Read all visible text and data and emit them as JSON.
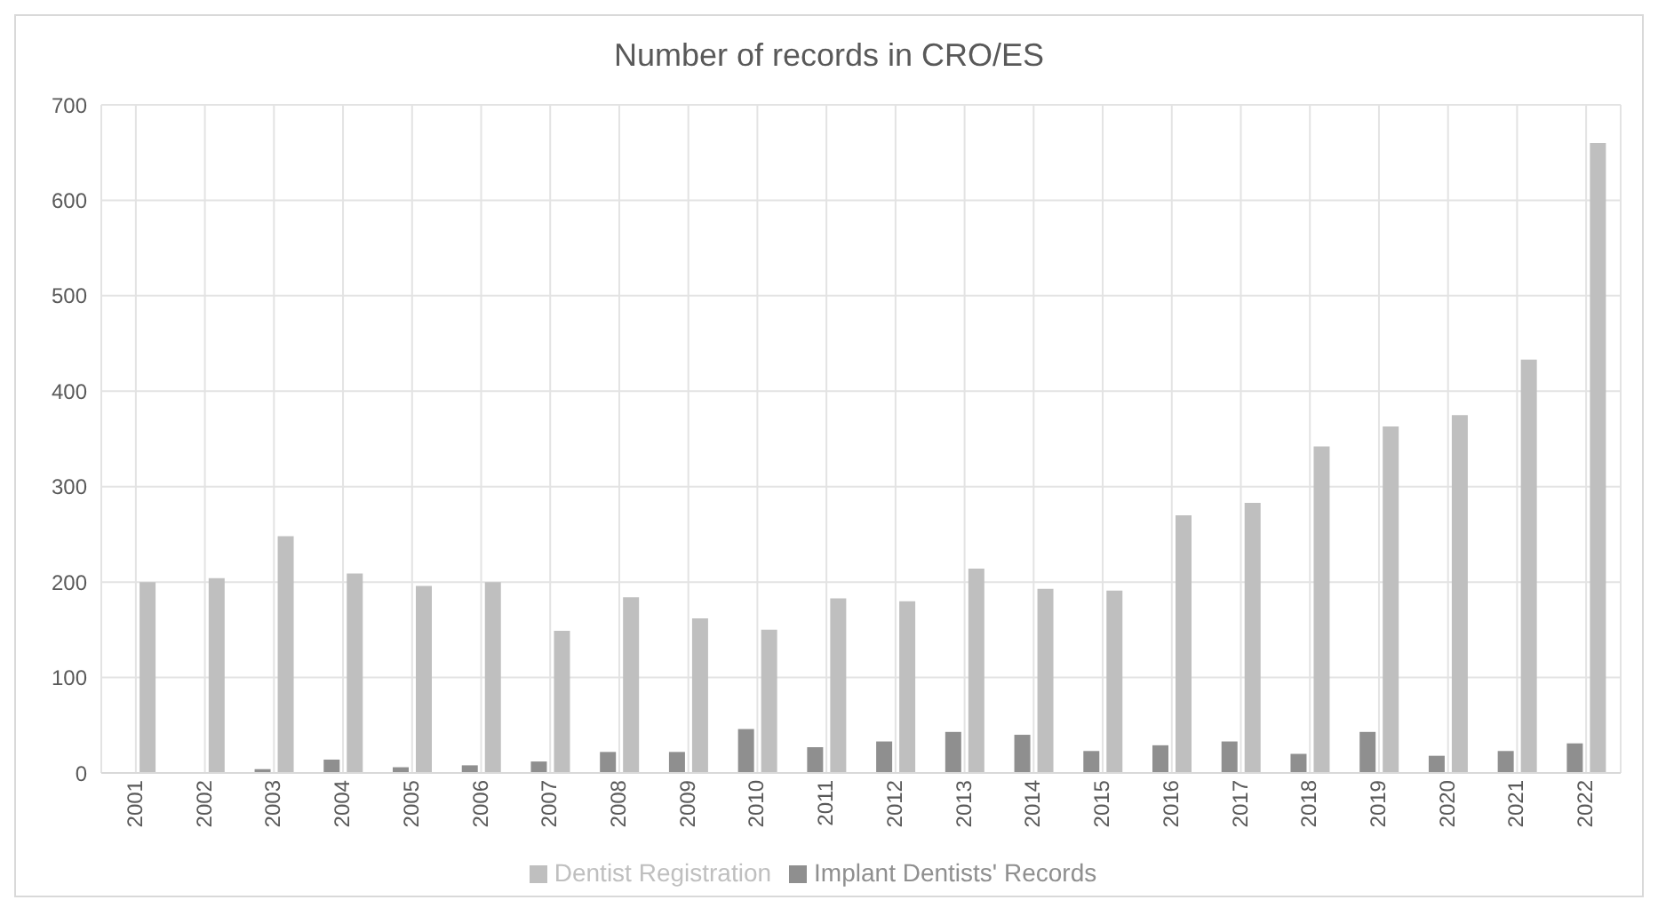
{
  "chart_data": {
    "type": "bar",
    "title": "Number of records in CRO/ES",
    "categories": [
      "2001",
      "2002",
      "2003",
      "2004",
      "2005",
      "2006",
      "2007",
      "2008",
      "2009",
      "2010",
      "2011",
      "2012",
      "2013",
      "2014",
      "2015",
      "2016",
      "2017",
      "2018",
      "2019",
      "2020",
      "2021",
      "2022"
    ],
    "series": [
      {
        "name": "Implant Dentists' Records",
        "color": "#8f8f8f",
        "values": [
          0,
          0,
          4,
          14,
          6,
          8,
          12,
          22,
          22,
          46,
          27,
          33,
          43,
          40,
          23,
          29,
          33,
          20,
          43,
          18,
          23,
          31
        ]
      },
      {
        "name": "Dentist Registration",
        "color": "#bfbfbf",
        "values": [
          200,
          204,
          248,
          209,
          196,
          200,
          149,
          184,
          162,
          150,
          183,
          180,
          214,
          193,
          191,
          270,
          283,
          342,
          363,
          375,
          433,
          660
        ]
      }
    ],
    "ylim": [
      0,
      700
    ],
    "yticks": [
      0,
      100,
      200,
      300,
      400,
      500,
      600,
      700
    ],
    "grid": true,
    "legend": "bottom"
  }
}
